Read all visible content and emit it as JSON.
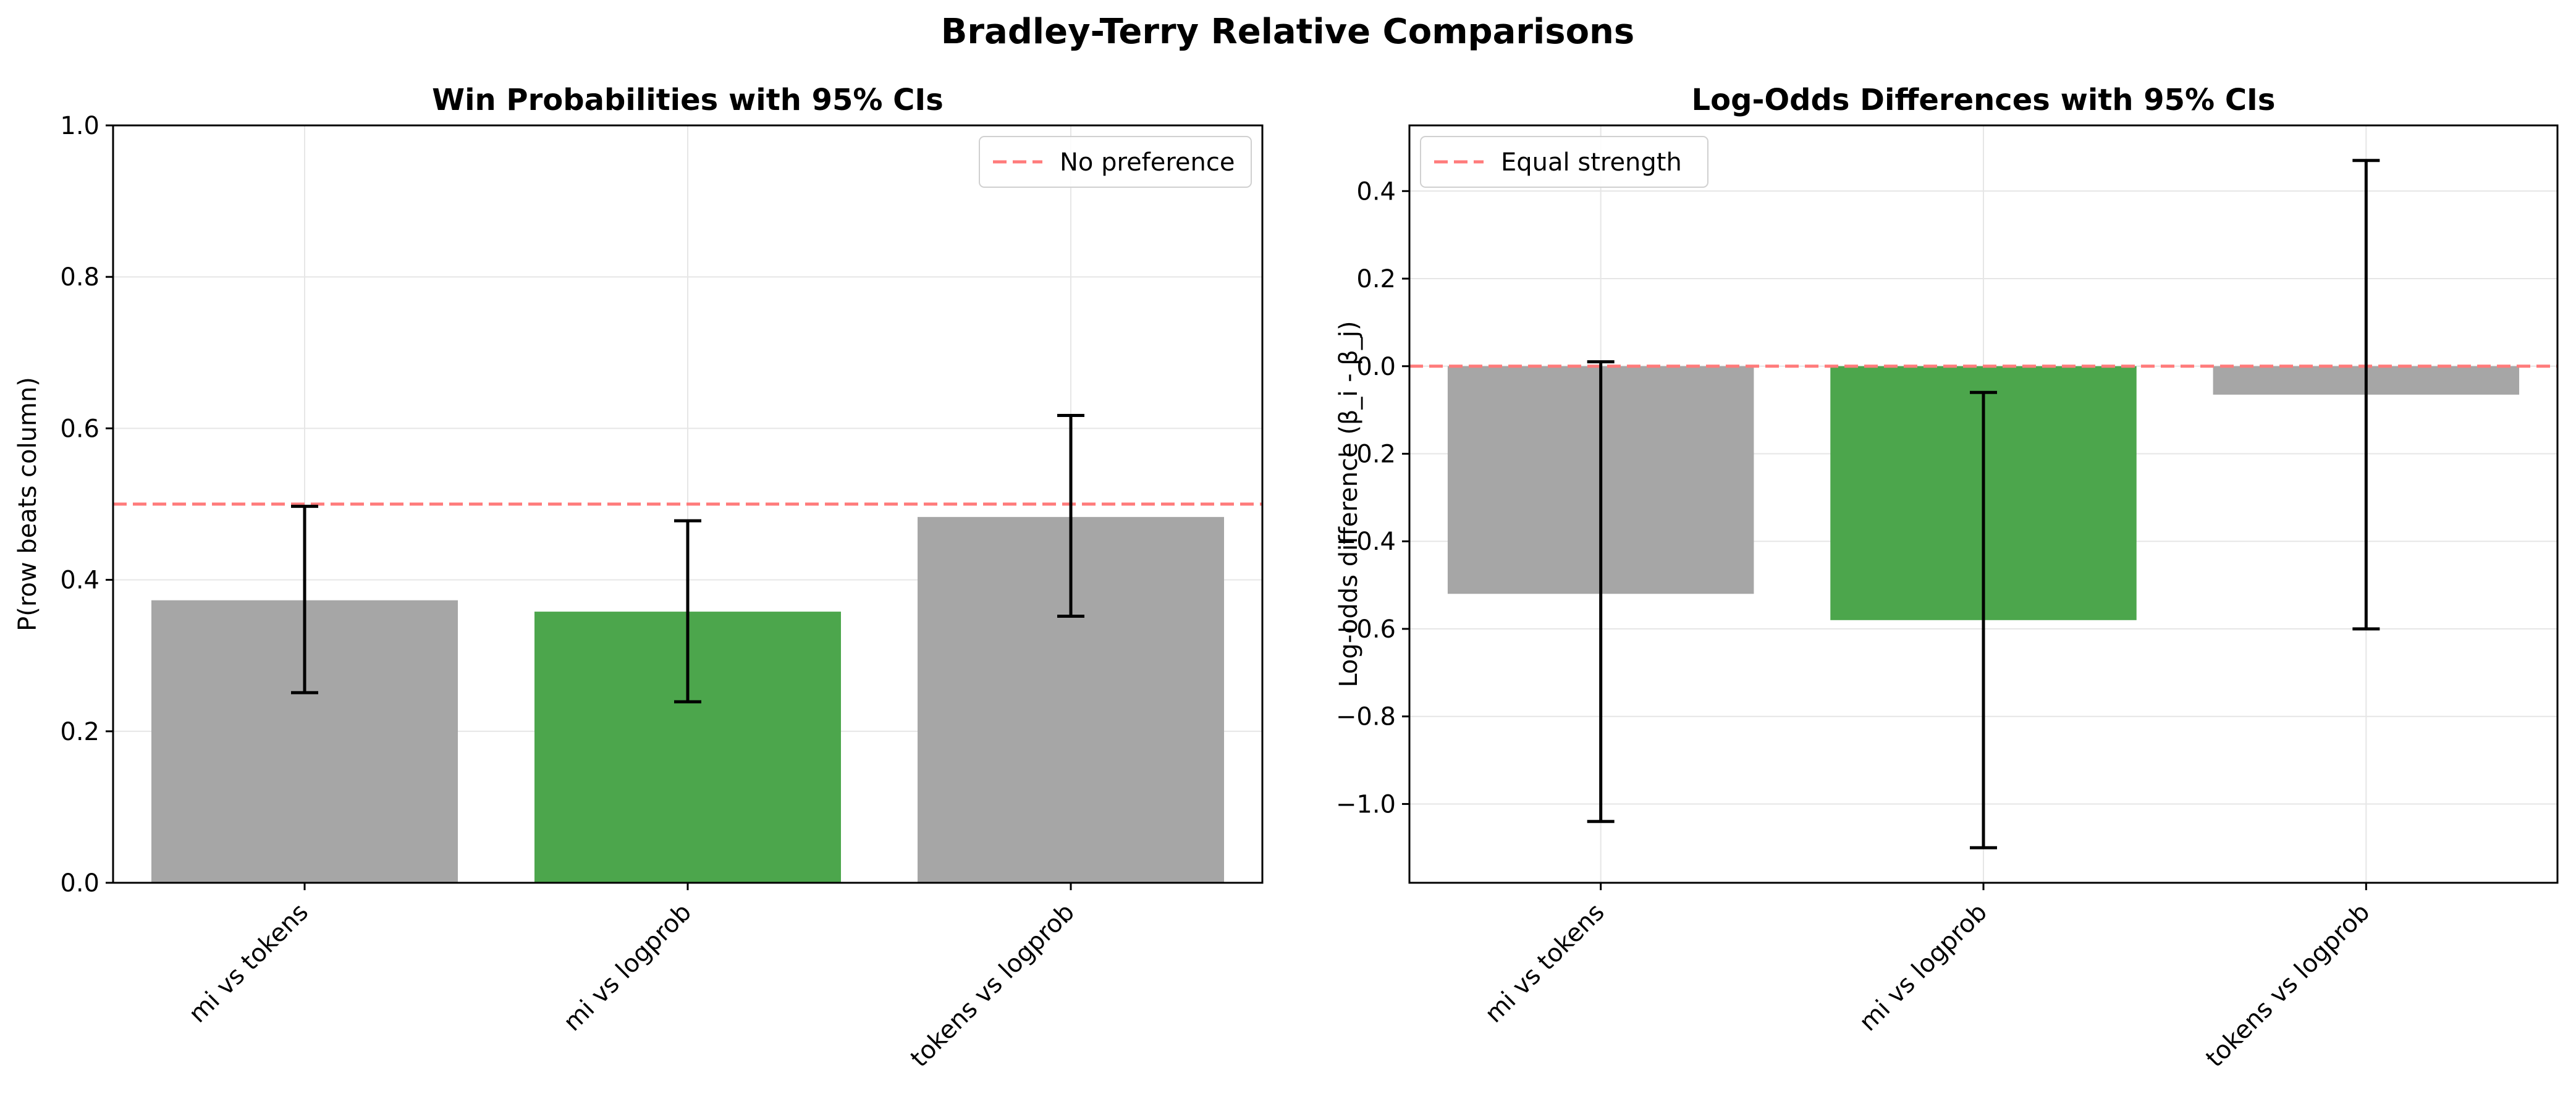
{
  "suptitle": "Bradley-Terry Relative Comparisons",
  "chart_data": [
    {
      "type": "bar",
      "title": "Win Probabilities with 95% CIs",
      "xlabel": "",
      "ylabel": "P(row beats column)",
      "categories": [
        "mi vs tokens",
        "mi vs logprob",
        "tokens vs logprob"
      ],
      "values": [
        0.373,
        0.358,
        0.483
      ],
      "ci_lower": [
        0.251,
        0.239,
        0.352
      ],
      "ci_upper": [
        0.497,
        0.478,
        0.617
      ],
      "bar_colors": [
        "#a6a6a6",
        "#4ca64c",
        "#a6a6a6"
      ],
      "ylim": [
        0.0,
        1.0
      ],
      "yticks": [
        0.0,
        0.2,
        0.4,
        0.6,
        0.8,
        1.0
      ],
      "ytick_labels": [
        "0.0",
        "0.2",
        "0.4",
        "0.6",
        "0.8",
        "1.0"
      ],
      "reference_line": {
        "value": 0.5,
        "label": "No preference",
        "color": "#ff7b7b"
      },
      "legend_position": "upper right",
      "grid": true
    },
    {
      "type": "bar",
      "title": "Log-Odds Differences with 95% CIs",
      "xlabel": "",
      "ylabel": "Log-odds difference (β_i - β_j)",
      "categories": [
        "mi vs tokens",
        "mi vs logprob",
        "tokens vs logprob"
      ],
      "values": [
        -0.52,
        -0.58,
        -0.065
      ],
      "ci_lower": [
        -1.04,
        -1.1,
        -0.6
      ],
      "ci_upper": [
        0.01,
        -0.06,
        0.47
      ],
      "bar_colors": [
        "#a6a6a6",
        "#4ca64c",
        "#a6a6a6"
      ],
      "ylim": [
        -1.18,
        0.55
      ],
      "yticks": [
        -1.0,
        -0.8,
        -0.6,
        -0.4,
        -0.2,
        0.0,
        0.2,
        0.4
      ],
      "ytick_labels": [
        "−1.0",
        "−0.8",
        "−0.6",
        "−0.4",
        "−0.2",
        "0.0",
        "0.2",
        "0.4"
      ],
      "reference_line": {
        "value": 0.0,
        "label": "Equal strength",
        "color": "#ff7b7b"
      },
      "legend_position": "upper left",
      "grid": true
    }
  ]
}
